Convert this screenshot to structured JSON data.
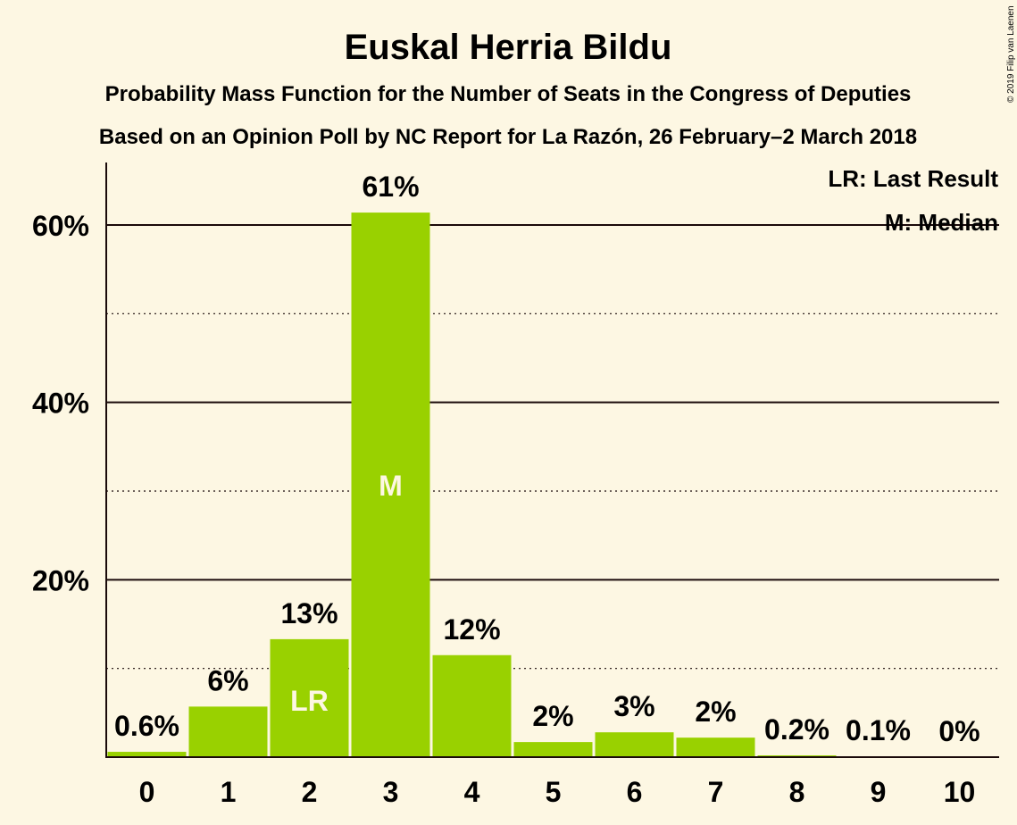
{
  "chart_data": {
    "type": "bar",
    "title": "Euskal Herria Bildu",
    "subtitle": "Probability Mass Function for the Number of Seats in the Congress of Deputies",
    "subtitle2": "Based on an Opinion Poll by NC Report for La Razón, 26 February–2 March 2018",
    "copyright": "© 2019 Filip van Laenen",
    "categories": [
      "0",
      "1",
      "2",
      "3",
      "4",
      "5",
      "6",
      "7",
      "8",
      "9",
      "10"
    ],
    "values": [
      0.6,
      5.7,
      13.3,
      61.4,
      11.5,
      1.7,
      2.8,
      2.2,
      0.2,
      0.1,
      0.0
    ],
    "value_labels": [
      "0.6%",
      "6%",
      "13%",
      "61%",
      "12%",
      "2%",
      "3%",
      "2%",
      "0.2%",
      "0.1%",
      "0%"
    ],
    "bar_marks": [
      "",
      "",
      "LR",
      "M",
      "",
      "",
      "",
      "",
      "",
      "",
      ""
    ],
    "y_ticks": [
      20,
      40,
      60
    ],
    "y_tick_labels": [
      "20%",
      "40%",
      "60%"
    ],
    "ylim": [
      0,
      67
    ],
    "legend": {
      "last_result": "LR: Last Result",
      "median": "M: Median",
      "placement": "top-right"
    },
    "colors": {
      "bar": "#99d100",
      "background": "#fdf7e3",
      "text": "#1a0a0a"
    }
  }
}
